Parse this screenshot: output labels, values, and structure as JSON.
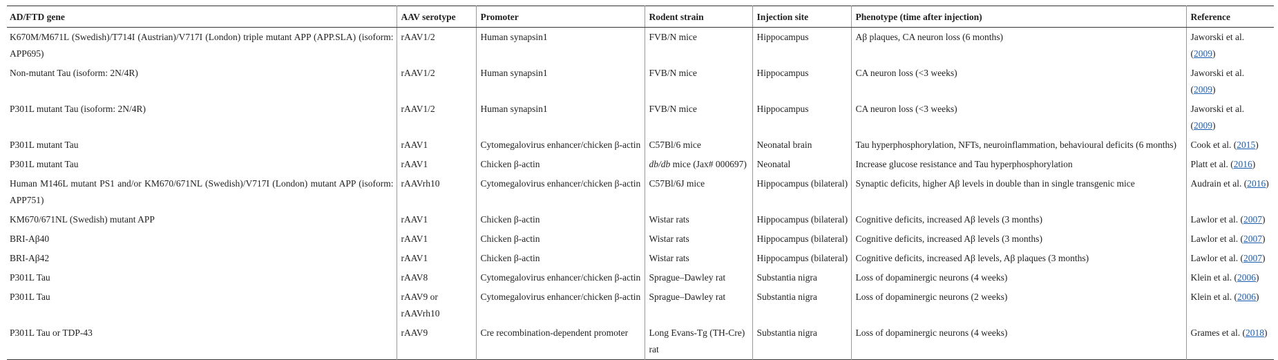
{
  "table": {
    "headers": [
      "AD/FTD gene",
      "AAV serotype",
      "Promoter",
      "Rodent strain",
      "Injection site",
      "Phenotype (time after injection)",
      "Reference"
    ],
    "rows": [
      [
        "K670M/M671L (Swedish)/T714I (Austrian)/V717I (London) triple mutant APP (APP.SLA) (isoform: APP695)",
        "rAAV1/2",
        "Human synapsin1",
        "FVB/N mice",
        "Hippocampus",
        "Aβ plaques, CA neuron loss (6 months)",
        {
          "prefix": "Jaworski et al. (",
          "year": "2009",
          "suffix": ")"
        }
      ],
      [
        "Non-mutant Tau (isoform: 2N/4R)",
        "rAAV1/2",
        "Human synapsin1",
        "FVB/N mice",
        "Hippocampus",
        "CA neuron loss (<3 weeks)",
        {
          "prefix": "Jaworski et al. (",
          "year": "2009",
          "suffix": ")"
        }
      ],
      [
        "P301L mutant Tau (isoform: 2N/4R)",
        "rAAV1/2",
        "Human synapsin1",
        "FVB/N mice",
        "Hippocampus",
        "CA neuron loss (<3 weeks)",
        {
          "prefix": "Jaworski et al. (",
          "year": "2009",
          "suffix": ")"
        }
      ],
      [
        "P301L mutant Tau",
        "rAAV1",
        "Cytomegalovirus enhancer/chicken β-actin",
        "C57Bl/6 mice",
        "Neonatal brain",
        "Tau hyperphosphorylation, NFTs, neuroinflammation, behavioural deficits (6 months)",
        {
          "prefix": "Cook et al. (",
          "year": "2015",
          "suffix": ")"
        }
      ],
      [
        "P301L mutant Tau",
        "rAAV1",
        "Chicken β-actin",
        {
          "italic": "db/db",
          "rest": " mice (Jax# 000697)"
        },
        "Neonatal",
        "Increase glucose resistance and Tau hyperphosphorylation",
        {
          "prefix": "Platt et al. (",
          "year": "2016",
          "suffix": ")"
        }
      ],
      [
        "Human M146L mutant PS1 and/or KM670/671NL (Swedish)/V717I (London) mutant APP (isoform: APP751)",
        "rAAVrh10",
        "Cytomegalovirus enhancer/chicken β-actin",
        "C57Bl/6J mice",
        "Hippocampus (bilateral)",
        "Synaptic deficits, higher Aβ levels in double than in single transgenic mice",
        {
          "prefix": "Audrain et al. (",
          "year": "2016",
          "suffix": ")"
        }
      ],
      [
        "KM670/671NL (Swedish) mutant APP",
        "rAAV1",
        "Chicken β-actin",
        "Wistar rats",
        "Hippocampus (bilateral)",
        "Cognitive deficits, increased Aβ levels (3 months)",
        {
          "prefix": "Lawlor et al. (",
          "year": "2007",
          "suffix": ")"
        }
      ],
      [
        "BRI-Aβ40",
        "rAAV1",
        "Chicken β-actin",
        "Wistar rats",
        "Hippocampus (bilateral)",
        "Cognitive deficits, increased Aβ levels (3 months)",
        {
          "prefix": "Lawlor et al. (",
          "year": "2007",
          "suffix": ")"
        }
      ],
      [
        "BRI-Aβ42",
        "rAAV1",
        "Chicken β-actin",
        "Wistar rats",
        "Hippocampus (bilateral)",
        "Cognitive deficits, increased Aβ levels, Aβ plaques (3 months)",
        {
          "prefix": "Lawlor et al. (",
          "year": "2007",
          "suffix": ")"
        }
      ],
      [
        "P301L Tau",
        "rAAV8",
        "Cytomegalovirus enhancer/chicken β-actin",
        "Sprague–Dawley rat",
        "Substantia nigra",
        "Loss of dopaminergic neurons (4 weeks)",
        {
          "prefix": "Klein et al. (",
          "year": "2006",
          "suffix": ")"
        }
      ],
      [
        "P301L Tau",
        "rAAV9 or rAAVrh10",
        "Cytomegalovirus enhancer/chicken β-actin",
        "Sprague–Dawley rat",
        "Substantia nigra",
        "Loss of dopaminergic neurons (2 weeks)",
        {
          "prefix": "Klein et al. (",
          "year": "2006",
          "suffix": ")"
        }
      ],
      [
        "P301L Tau or TDP-43",
        "rAAV9",
        "Cre recombination-dependent promoter",
        "Long Evans-Tg (TH-Cre) rat",
        "Substantia nigra",
        "Loss of dopaminergic neurons (4 weeks)",
        {
          "prefix": "Grames et al. (",
          "year": "2018",
          "suffix": ")"
        }
      ]
    ]
  }
}
